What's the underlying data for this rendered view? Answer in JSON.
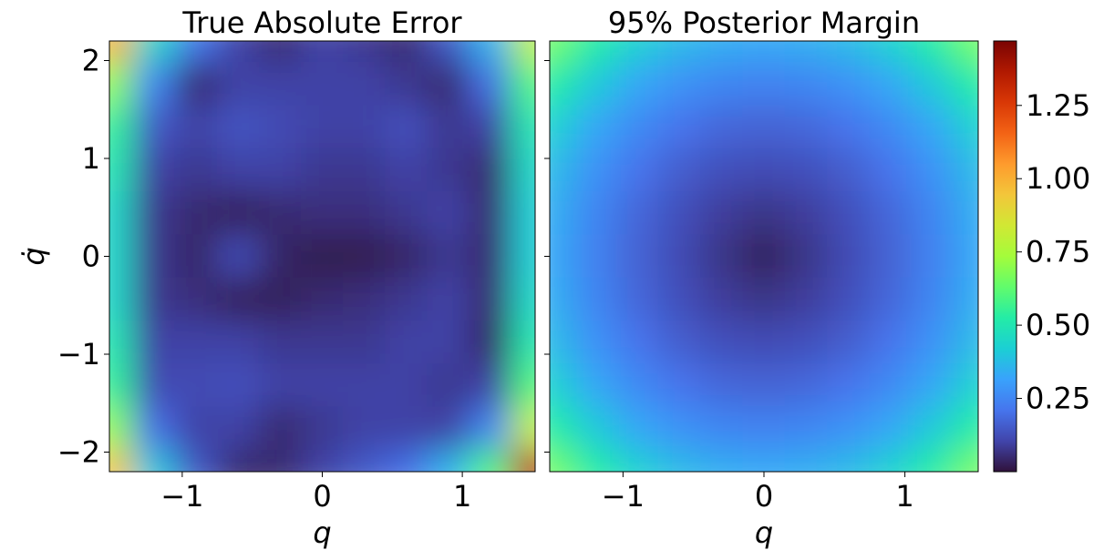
{
  "chart_data": [
    {
      "type": "heatmap",
      "title": "True Absolute Error",
      "x_label": "q",
      "y_label": "q̇",
      "x": [
        -1.5,
        -1.2,
        -0.9,
        -0.6,
        -0.3,
        0,
        0.3,
        0.6,
        0.9,
        1.2,
        1.5
      ],
      "y": [
        2.2,
        1.76,
        1.32,
        0.88,
        0.44,
        0,
        -0.44,
        -0.88,
        -1.32,
        -1.76,
        -2.2
      ],
      "z": [
        [
          1.0,
          0.45,
          0.22,
          0.1,
          0.05,
          0.1,
          0.08,
          0.05,
          0.15,
          0.35,
          0.8
        ],
        [
          0.7,
          0.25,
          0.05,
          0.1,
          0.1,
          0.1,
          0.1,
          0.08,
          0.05,
          0.2,
          0.6
        ],
        [
          0.55,
          0.15,
          0.1,
          0.14,
          0.12,
          0.1,
          0.1,
          0.13,
          0.08,
          0.1,
          0.5
        ],
        [
          0.5,
          0.1,
          0.08,
          0.1,
          0.1,
          0.08,
          0.08,
          0.1,
          0.08,
          0.05,
          0.45
        ],
        [
          0.45,
          0.08,
          0.05,
          0.03,
          0.05,
          0.06,
          0.06,
          0.08,
          0.1,
          0.05,
          0.42
        ],
        [
          0.45,
          0.08,
          0.04,
          0.12,
          0.04,
          0.02,
          0.02,
          0.04,
          0.08,
          0.05,
          0.42
        ],
        [
          0.45,
          0.08,
          0.06,
          0.03,
          0.03,
          0.05,
          0.06,
          0.08,
          0.1,
          0.05,
          0.45
        ],
        [
          0.5,
          0.1,
          0.1,
          0.1,
          0.08,
          0.08,
          0.08,
          0.1,
          0.1,
          0.04,
          0.5
        ],
        [
          0.55,
          0.12,
          0.12,
          0.13,
          0.1,
          0.1,
          0.1,
          0.1,
          0.08,
          0.1,
          0.6
        ],
        [
          0.7,
          0.2,
          0.1,
          0.1,
          0.05,
          0.08,
          0.1,
          0.1,
          0.1,
          0.25,
          0.8
        ],
        [
          0.95,
          0.4,
          0.15,
          0.05,
          0.05,
          0.1,
          0.15,
          0.2,
          0.35,
          0.6,
          1.35
        ]
      ],
      "xlim": [
        -1.52,
        1.52
      ],
      "ylim": [
        -2.2,
        2.2
      ],
      "xticks": [
        {
          "value": -1,
          "label": "−1"
        },
        0,
        1
      ],
      "yticks": [
        2,
        1,
        0,
        {
          "value": -1,
          "label": "−1"
        },
        {
          "value": -2,
          "label": "−2"
        }
      ],
      "y_tick_labels": true
    },
    {
      "type": "heatmap",
      "title": "95% Posterior Margin",
      "x_label": "q",
      "x": [
        -1.5,
        -1.2,
        -0.9,
        -0.6,
        -0.3,
        0,
        0.3,
        0.6,
        0.9,
        1.2,
        1.5
      ],
      "y": [
        2.2,
        1.76,
        1.32,
        0.88,
        0.44,
        0,
        -0.44,
        -0.88,
        -1.32,
        -1.76,
        -2.2
      ],
      "z": [
        [
          0.66,
          0.53,
          0.43,
          0.37,
          0.34,
          0.33,
          0.34,
          0.37,
          0.43,
          0.53,
          0.66
        ],
        [
          0.53,
          0.41,
          0.33,
          0.28,
          0.25,
          0.24,
          0.25,
          0.28,
          0.33,
          0.41,
          0.53
        ],
        [
          0.43,
          0.33,
          0.26,
          0.21,
          0.18,
          0.17,
          0.18,
          0.21,
          0.26,
          0.33,
          0.43
        ],
        [
          0.37,
          0.28,
          0.21,
          0.16,
          0.13,
          0.12,
          0.13,
          0.16,
          0.21,
          0.28,
          0.37
        ],
        [
          0.34,
          0.25,
          0.18,
          0.13,
          0.09,
          0.07,
          0.09,
          0.13,
          0.18,
          0.25,
          0.34
        ],
        [
          0.33,
          0.24,
          0.17,
          0.12,
          0.07,
          0.03,
          0.07,
          0.12,
          0.17,
          0.24,
          0.33
        ],
        [
          0.34,
          0.25,
          0.18,
          0.13,
          0.09,
          0.07,
          0.09,
          0.13,
          0.18,
          0.25,
          0.34
        ],
        [
          0.37,
          0.28,
          0.21,
          0.16,
          0.13,
          0.12,
          0.13,
          0.16,
          0.21,
          0.28,
          0.37
        ],
        [
          0.43,
          0.33,
          0.26,
          0.21,
          0.18,
          0.17,
          0.18,
          0.21,
          0.26,
          0.33,
          0.43
        ],
        [
          0.53,
          0.41,
          0.33,
          0.28,
          0.25,
          0.24,
          0.25,
          0.28,
          0.33,
          0.41,
          0.53
        ],
        [
          0.66,
          0.53,
          0.43,
          0.37,
          0.34,
          0.33,
          0.34,
          0.37,
          0.43,
          0.53,
          0.66
        ]
      ],
      "xlim": [
        -1.52,
        1.52
      ],
      "ylim": [
        -2.2,
        2.2
      ],
      "xticks": [
        {
          "value": -1,
          "label": "−1"
        },
        0,
        1
      ],
      "yticks": [
        2,
        1,
        0,
        -1,
        -2
      ],
      "y_tick_labels": false,
      "colorbar": {
        "lim": [
          0,
          1.47
        ],
        "ticks": [
          0.25,
          {
            "value": 0.5,
            "label": "0.50"
          },
          0.75,
          {
            "value": 1,
            "label": "1.00"
          },
          1.25
        ]
      }
    }
  ],
  "colormap": [
    "#30123b",
    "#4145ab",
    "#4675ed",
    "#39a2fc",
    "#1bcfd4",
    "#24eca6",
    "#61fc6c",
    "#a4fc3b",
    "#d1e834",
    "#f3c63a",
    "#fe9b2d",
    "#f36315",
    "#d93806",
    "#b11901",
    "#7a0402"
  ]
}
